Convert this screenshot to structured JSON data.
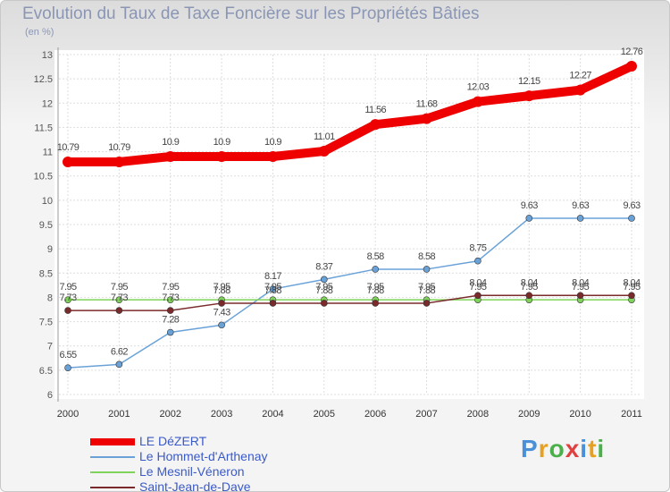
{
  "title": "Evolution du Taux de Taxe Foncière sur les Propriétés Bâties",
  "unit_label": "(en %)",
  "logo": {
    "text": "Proxiti",
    "letters": [
      "P",
      "r",
      "o",
      "x",
      "i",
      "t",
      "i"
    ],
    "colors": [
      "#4a90d9",
      "#e8a020",
      "#4ab04a",
      "#e04040",
      "#4a90d9",
      "#e8a020",
      "#4ab04a"
    ]
  },
  "chart_data": {
    "type": "line",
    "title": "Evolution du Taux de Taxe Foncière sur les Propriétés Bâties",
    "xlabel": "",
    "ylabel": "(en %)",
    "ylim": [
      6,
      13
    ],
    "yticks": [
      "6",
      "6.5",
      "7",
      "7.5",
      "8",
      "8.5",
      "9",
      "9.5",
      "10",
      "10.5",
      "11",
      "11.5",
      "12",
      "12.5",
      "13"
    ],
    "categories": [
      "2000",
      "2001",
      "2002",
      "2003",
      "2004",
      "2005",
      "2006",
      "2007",
      "2008",
      "2009",
      "2010",
      "2011"
    ],
    "grid": true,
    "series": [
      {
        "name": "LE DéZERT",
        "color": "#ee0000",
        "values": [
          10.79,
          10.79,
          10.9,
          10.9,
          10.9,
          11.01,
          11.56,
          11.68,
          12.03,
          12.15,
          12.27,
          12.76
        ],
        "labels": [
          "10.79",
          "10.79",
          "10.9",
          "10.9",
          "10.9",
          "11.01",
          "11.56",
          "11.68",
          "12.03",
          "12.15",
          "12.27",
          "12.76"
        ]
      },
      {
        "name": "Le Hommet-d'Arthenay",
        "color": "#6aa2d8",
        "values": [
          6.55,
          6.62,
          7.28,
          7.43,
          8.17,
          8.37,
          8.58,
          8.58,
          8.75,
          9.63,
          9.63,
          9.63
        ],
        "labels": [
          "6.55",
          "6.62",
          "7.28",
          "7.43",
          "8.17",
          "8.37",
          "8.58",
          "8.58",
          "8.75",
          "9.63",
          "9.63",
          "9.63"
        ]
      },
      {
        "name": "Le Mesnil-Véneron",
        "color": "#7fd35a",
        "values": [
          7.95,
          7.95,
          7.95,
          7.95,
          7.95,
          7.95,
          7.95,
          7.95,
          7.95,
          7.95,
          7.95,
          7.95
        ],
        "labels": [
          "7.95",
          "7.95",
          "7.95",
          "7.95",
          "7.95",
          "7.95",
          "7.95",
          "7.95",
          "7.95",
          "7.95",
          "7.95",
          "7.95"
        ]
      },
      {
        "name": "Saint-Jean-de-Daye",
        "color": "#7a2a2a",
        "values": [
          7.73,
          7.73,
          7.73,
          7.88,
          7.88,
          7.88,
          7.88,
          7.88,
          8.04,
          8.04,
          8.04,
          8.04
        ],
        "labels": [
          "7.73",
          "7.73",
          "7.73",
          "7.88",
          "7.88",
          "7.88",
          "7.88",
          "7.88",
          "8.04",
          "8.04",
          "8.04",
          "8.04"
        ]
      }
    ]
  }
}
